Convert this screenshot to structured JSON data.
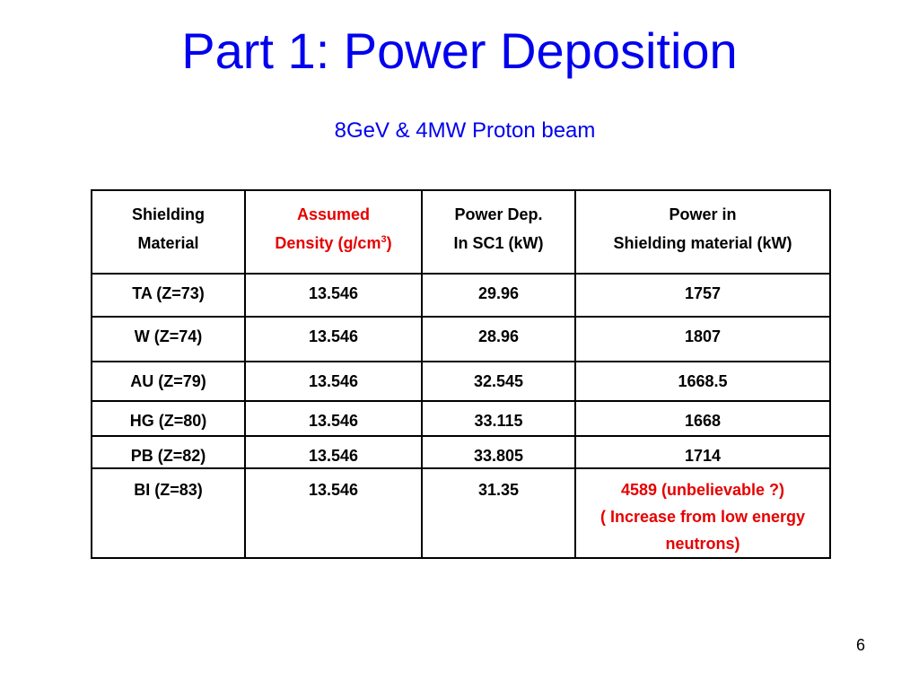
{
  "slide": {
    "title": "Part 1: Power Deposition",
    "subtitle": "8GeV & 4MW Proton beam",
    "page_number": "6"
  },
  "colors": {
    "title_blue": "#0000ee",
    "subtitle_blue": "#0000ee",
    "red_text": "#e60000"
  },
  "table": {
    "headers": [
      {
        "line1": "Shielding",
        "line2": "Material"
      },
      {
        "line1": "Assumed",
        "line2": "Density (g/cm",
        "sup": "3",
        "line2_end": ")"
      },
      {
        "line1": "Power Dep.",
        "line2": "In SC1 (kW)"
      },
      {
        "line1": "Power in",
        "line2": "Shielding material (kW)"
      }
    ],
    "rows": [
      {
        "material": "TA (Z=73)",
        "density": "13.546",
        "power_sc1": "29.96",
        "power_shield": "1757"
      },
      {
        "material": "W (Z=74)",
        "density": "13.546",
        "power_sc1": "28.96",
        "power_shield": "1807"
      },
      {
        "material": "AU (Z=79)",
        "density": "13.546",
        "power_sc1": "32.545",
        "power_shield": "1668.5"
      },
      {
        "material": "HG (Z=80)",
        "density": "13.546",
        "power_sc1": "33.115",
        "power_shield": "1668"
      },
      {
        "material": "PB (Z=82)",
        "density": "13.546",
        "power_sc1": "33.805",
        "power_shield": "1714"
      },
      {
        "material": "BI (Z=83)",
        "density": "13.546",
        "power_sc1": "31.35",
        "power_shield": "4589 (unbelievable ?)",
        "power_shield_note": "( Increase from low energy neutrons)"
      }
    ]
  }
}
